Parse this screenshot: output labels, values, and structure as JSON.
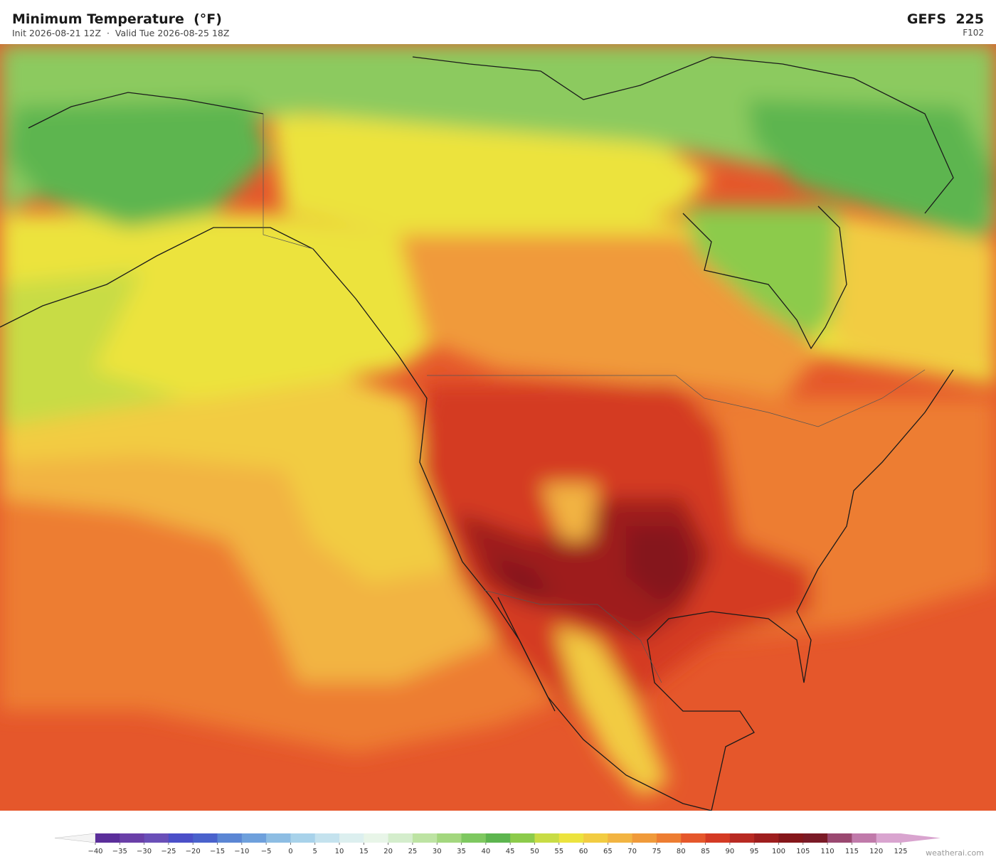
{
  "header": {
    "title": "Minimum Temperature  (°F)",
    "subtitle": "Init 2026-08-21 12Z  ·  Valid Tue 2026-08-25 18Z",
    "model": "GEFS  225",
    "frame": "F102"
  },
  "colorbar": {
    "ticks": [
      {
        "value": -40,
        "label": "−40"
      },
      {
        "value": -35,
        "label": "−35"
      },
      {
        "value": -30,
        "label": "−30"
      },
      {
        "value": -25,
        "label": "−25"
      },
      {
        "value": -20,
        "label": "−20"
      },
      {
        "value": -15,
        "label": "−15"
      },
      {
        "value": -10,
        "label": "−10"
      },
      {
        "value": -5,
        "label": "−5"
      },
      0,
      5,
      10,
      15,
      20,
      25,
      30,
      35,
      40,
      45,
      50,
      55,
      60,
      65,
      70,
      75,
      80,
      85,
      90,
      95,
      100,
      105,
      110,
      115,
      120,
      125
    ],
    "colors": [
      "#5b2e9a",
      "#6a3fa8",
      "#6a4fb8",
      "#4b4fc8",
      "#4a62cc",
      "#5b86d4",
      "#6ea0dc",
      "#8dbde3",
      "#a8d2ea",
      "#c4e2ee",
      "#dcefef",
      "#e8f5e8",
      "#d4edcc",
      "#bde3a3",
      "#a3d77e",
      "#7ec860",
      "#5db54f",
      "#8ccb4b",
      "#c8dc45",
      "#ece33e",
      "#f2cc42",
      "#f2b442",
      "#f09a3a",
      "#ed7d32",
      "#e5572b",
      "#d43a24",
      "#b82a22",
      "#9e1e1e",
      "#85161a",
      "#7a1a26",
      "#9a4870",
      "#c07aaa",
      "#d9a4cf"
    ],
    "extend_low_color": "#f4f4f4",
    "extend_high_color": "#d9a4cf"
  },
  "credit": "weatherai.com"
}
